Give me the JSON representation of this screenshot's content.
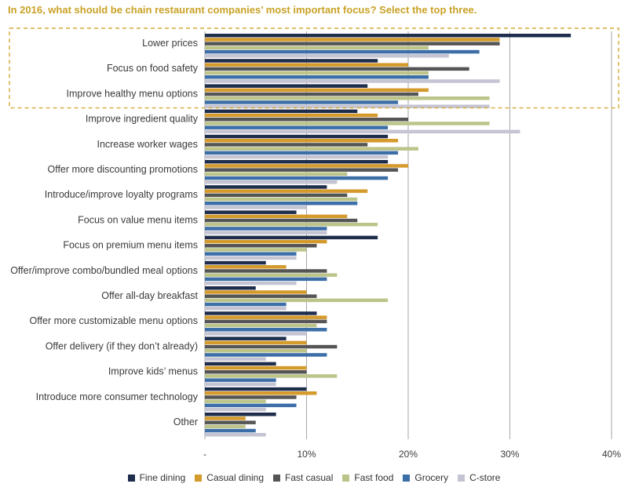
{
  "header": {
    "question": "In 2016, what should be chain restaurant companies’ most important focus? Select the top three."
  },
  "colors": {
    "question_text": "#c9a227",
    "highlight_border": "#d4a937",
    "gridline": "#a6a6a6",
    "label_text": "#3a3a3a"
  },
  "chart_data": {
    "type": "bar",
    "orientation": "horizontal",
    "categories": [
      "Lower prices",
      "Focus on food safety",
      "Improve healthy menu options",
      "Improve ingredient quality",
      "Increase worker wages",
      "Offer more discounting promotions",
      "Introduce/improve loyalty programs",
      "Focus on value menu items",
      "Focus on premium menu items",
      "Offer/improve combo/bundled meal options",
      "Offer all-day breakfast",
      "Offer more customizable menu options",
      "Offer delivery (if they don’t already)",
      "Improve kids’ menus",
      "Introduce more consumer technology",
      "Other"
    ],
    "series": [
      {
        "name": "Fine dining",
        "color": "#1f2d4d",
        "values": [
          36,
          17,
          16,
          15,
          18,
          18,
          12,
          9,
          17,
          6,
          5,
          11,
          8,
          7,
          10,
          7
        ]
      },
      {
        "name": "Casual dining",
        "color": "#d49a2c",
        "values": [
          29,
          20,
          22,
          17,
          19,
          20,
          16,
          14,
          12,
          8,
          10,
          12,
          10,
          10,
          11,
          4
        ]
      },
      {
        "name": "Fast casual",
        "color": "#555555",
        "values": [
          29,
          26,
          21,
          20,
          16,
          19,
          14,
          15,
          11,
          12,
          11,
          12,
          13,
          10,
          9,
          5
        ]
      },
      {
        "name": "Fast food",
        "color": "#bcc48a",
        "values": [
          22,
          22,
          28,
          28,
          21,
          14,
          15,
          17,
          10,
          13,
          18,
          11,
          10,
          13,
          6,
          4
        ]
      },
      {
        "name": "Grocery",
        "color": "#3c6ea8",
        "values": [
          27,
          22,
          19,
          18,
          19,
          18,
          15,
          12,
          9,
          12,
          8,
          12,
          12,
          7,
          9,
          5
        ]
      },
      {
        "name": "C-store",
        "color": "#c4c4d3",
        "values": [
          24,
          29,
          28,
          31,
          18,
          13,
          10,
          12,
          9,
          9,
          8,
          10,
          6,
          7,
          6,
          6
        ]
      }
    ],
    "xlim": [
      0,
      40
    ],
    "xticks": [
      {
        "value": 0,
        "label": "-"
      },
      {
        "value": 10,
        "label": "10%"
      },
      {
        "value": 20,
        "label": "20%"
      },
      {
        "value": 30,
        "label": "30%"
      },
      {
        "value": 40,
        "label": "40%"
      }
    ],
    "highlighted_categories": [
      0,
      1,
      2
    ],
    "grid": "vertical",
    "legend_position": "bottom"
  }
}
